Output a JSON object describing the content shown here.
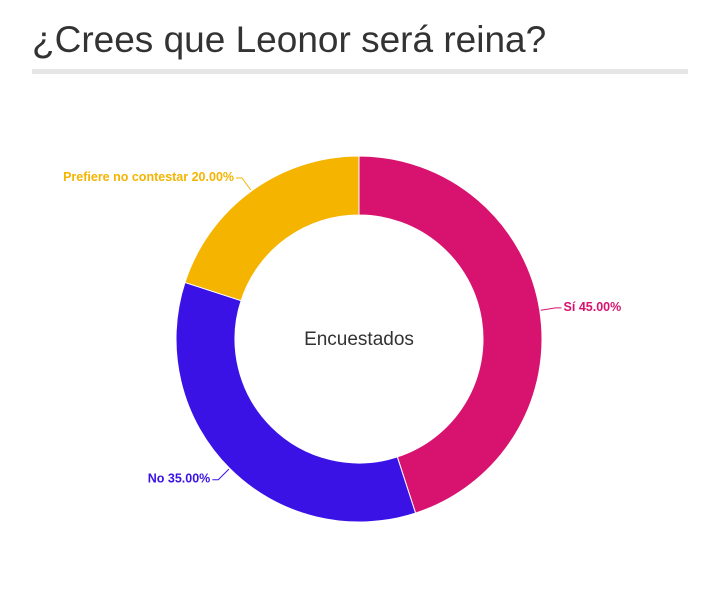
{
  "chart_data": {
    "type": "donut",
    "title": "¿Crees que Leonor será reina?",
    "center_label": "Encuestados",
    "categories": [
      "Sí",
      "No",
      "Prefiere no contestar"
    ],
    "values": [
      45,
      35,
      20
    ],
    "value_labels": [
      "45.00%",
      "35.00%",
      "20.00%"
    ],
    "colors": [
      "#d8136f",
      "#3a12e6",
      "#f4b400"
    ]
  }
}
